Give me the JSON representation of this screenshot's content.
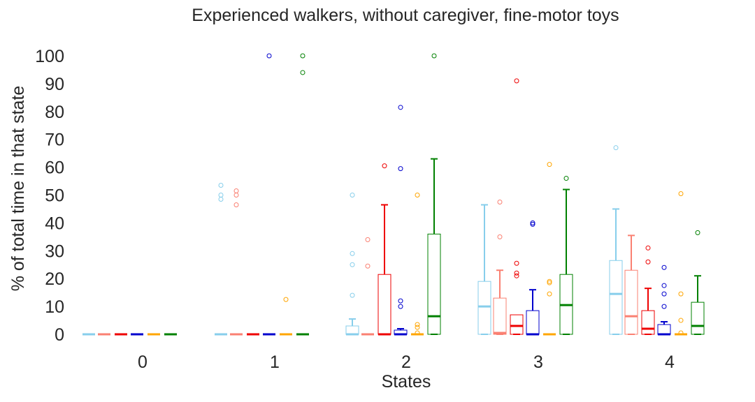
{
  "chart_data": {
    "type": "box",
    "title": "Experienced walkers, without caregiver, fine-motor toys",
    "xlabel": "States",
    "ylabel": "% of total time in that state",
    "categories": [
      "0",
      "1",
      "2",
      "3",
      "4"
    ],
    "yticks": [
      "0",
      "10",
      "20",
      "30",
      "40",
      "50",
      "60",
      "70",
      "80",
      "90",
      "100"
    ],
    "ylim": [
      0,
      100
    ],
    "grid": false,
    "legend": "none",
    "series_colors": [
      "#87ceeb",
      "#fa8072",
      "#ee0000",
      "#0000cd",
      "#ffa500",
      "#008000"
    ],
    "series": [
      {
        "color": "#87ceeb",
        "boxes": [
          {
            "q1": 0,
            "median": 0,
            "q3": 0,
            "whislo": 0,
            "whishi": 0,
            "fliers": []
          },
          {
            "q1": 0,
            "median": 0,
            "q3": 0,
            "whislo": 0,
            "whishi": 0,
            "fliers": [
              53.5,
              50,
              48.5
            ]
          },
          {
            "q1": 0,
            "median": 0,
            "q3": 3,
            "whislo": 0,
            "whishi": 5.5,
            "fliers": [
              50,
              29,
              25,
              14
            ]
          },
          {
            "q1": 0,
            "median": 10,
            "q3": 19,
            "whislo": 0,
            "whishi": 46.5,
            "fliers": []
          },
          {
            "q1": 0,
            "median": 14.5,
            "q3": 26.5,
            "whislo": 0,
            "whishi": 45,
            "fliers": [
              67
            ]
          }
        ]
      },
      {
        "color": "#fa8072",
        "boxes": [
          {
            "q1": 0,
            "median": 0,
            "q3": 0,
            "whislo": 0,
            "whishi": 0,
            "fliers": []
          },
          {
            "q1": 0,
            "median": 0,
            "q3": 0,
            "whislo": 0,
            "whishi": 0,
            "fliers": [
              51.5,
              50,
              46.5
            ]
          },
          {
            "q1": 0,
            "median": 0,
            "q3": 0,
            "whislo": 0,
            "whishi": 0,
            "fliers": [
              34,
              24.5
            ]
          },
          {
            "q1": 0,
            "median": 0.5,
            "q3": 13,
            "whislo": 0,
            "whishi": 23,
            "fliers": [
              47.5,
              35
            ]
          },
          {
            "q1": 0,
            "median": 6.5,
            "q3": 23,
            "whislo": 0,
            "whishi": 35.5,
            "fliers": []
          }
        ]
      },
      {
        "color": "#ee0000",
        "boxes": [
          {
            "q1": 0,
            "median": 0,
            "q3": 0,
            "whislo": 0,
            "whishi": 0,
            "fliers": []
          },
          {
            "q1": 0,
            "median": 0,
            "q3": 0,
            "whislo": 0,
            "whishi": 0,
            "fliers": []
          },
          {
            "q1": 0,
            "median": 0,
            "q3": 21.5,
            "whislo": 0,
            "whishi": 46.5,
            "fliers": [
              60.5
            ]
          },
          {
            "q1": 0,
            "median": 3,
            "q3": 7,
            "whislo": 0,
            "whishi": 7,
            "fliers": [
              91,
              25.5,
              22,
              21
            ]
          },
          {
            "q1": 0,
            "median": 2,
            "q3": 8.5,
            "whislo": 0,
            "whishi": 16.5,
            "fliers": [
              31,
              26
            ]
          }
        ]
      },
      {
        "color": "#0000cd",
        "boxes": [
          {
            "q1": 0,
            "median": 0,
            "q3": 0,
            "whislo": 0,
            "whishi": 0,
            "fliers": []
          },
          {
            "q1": 0,
            "median": 0,
            "q3": 0,
            "whislo": 0,
            "whishi": 0,
            "fliers": [
              100
            ]
          },
          {
            "q1": 0,
            "median": 0,
            "q3": 1.5,
            "whislo": 0,
            "whishi": 2,
            "fliers": [
              81.5,
              59.5,
              12,
              10
            ]
          },
          {
            "q1": 0,
            "median": 0,
            "q3": 8.5,
            "whislo": 0,
            "whishi": 16,
            "fliers": [
              40,
              39.5
            ]
          },
          {
            "q1": 0,
            "median": 0,
            "q3": 3.5,
            "whislo": 0,
            "whishi": 4.5,
            "fliers": [
              24,
              17.5,
              14.5,
              10
            ]
          }
        ]
      },
      {
        "color": "#ffa500",
        "boxes": [
          {
            "q1": 0,
            "median": 0,
            "q3": 0,
            "whislo": 0,
            "whishi": 0,
            "fliers": []
          },
          {
            "q1": 0,
            "median": 0,
            "q3": 0,
            "whislo": 0,
            "whishi": 0,
            "fliers": [
              12.5
            ]
          },
          {
            "q1": 0,
            "median": 0,
            "q3": 0,
            "whislo": 0,
            "whishi": 0,
            "fliers": [
              50,
              3.5,
              2.5,
              0.5
            ]
          },
          {
            "q1": 0,
            "median": 0,
            "q3": 0,
            "whislo": 0,
            "whishi": 0,
            "fliers": [
              61,
              19,
              18.5,
              14.5
            ]
          },
          {
            "q1": 0,
            "median": 0,
            "q3": 0,
            "whislo": 0,
            "whishi": 0,
            "fliers": [
              50.5,
              14.5,
              5,
              0.5
            ]
          }
        ]
      },
      {
        "color": "#008000",
        "boxes": [
          {
            "q1": 0,
            "median": 0,
            "q3": 0,
            "whislo": 0,
            "whishi": 0,
            "fliers": []
          },
          {
            "q1": 0,
            "median": 0,
            "q3": 0,
            "whislo": 0,
            "whishi": 0,
            "fliers": [
              100,
              94
            ]
          },
          {
            "q1": 0,
            "median": 6.5,
            "q3": 36,
            "whislo": 0,
            "whishi": 63,
            "fliers": [
              100
            ]
          },
          {
            "q1": 0,
            "median": 10.5,
            "q3": 21.5,
            "whislo": 0,
            "whishi": 52,
            "fliers": [
              56
            ]
          },
          {
            "q1": 0,
            "median": 3,
            "q3": 11.5,
            "whislo": 0,
            "whishi": 21,
            "fliers": [
              36.5
            ]
          }
        ]
      }
    ]
  }
}
